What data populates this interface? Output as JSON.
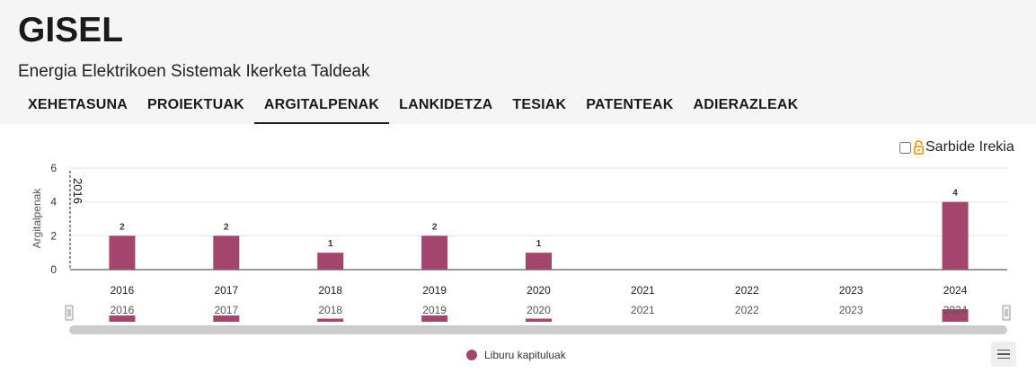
{
  "header": {
    "title": "GISEL",
    "subtitle": "Energia Elektrikoen Sistemak Ikerketa Taldeak"
  },
  "tabs": [
    {
      "label": "XEHETASUNA",
      "active": false
    },
    {
      "label": "PROIEKTUAK",
      "active": false
    },
    {
      "label": "ARGITALPENAK",
      "active": true
    },
    {
      "label": "LANKIDETZA",
      "active": false
    },
    {
      "label": "TESIAK",
      "active": false
    },
    {
      "label": "PATENTEAK",
      "active": false
    },
    {
      "label": "ADIERAZLEAK",
      "active": false
    }
  ],
  "open_access": {
    "label": "Sarbide Irekia",
    "checked": false,
    "icon": "open-lock-icon"
  },
  "chart_data": {
    "type": "bar",
    "categories": [
      "2016",
      "2017",
      "2018",
      "2019",
      "2020",
      "2021",
      "2022",
      "2023",
      "2024"
    ],
    "series": [
      {
        "name": "Liburu kapituluak",
        "values": [
          2,
          2,
          1,
          2,
          1,
          0,
          0,
          0,
          4
        ],
        "color": "#a3456c"
      }
    ],
    "data_labels": [
      "2",
      "2",
      "1",
      "2",
      "1",
      "",
      "",
      "",
      "4"
    ],
    "ylabel": "Argitalpenak",
    "xlabel": "",
    "ylim": [
      0,
      6
    ],
    "yticks": [
      "0",
      "2",
      "4",
      "6"
    ],
    "crosshair_label": "2016",
    "grid": true,
    "legend_position": "bottom-center",
    "navigator": true
  },
  "menu": {
    "icon": "hamburger-menu-icon"
  }
}
